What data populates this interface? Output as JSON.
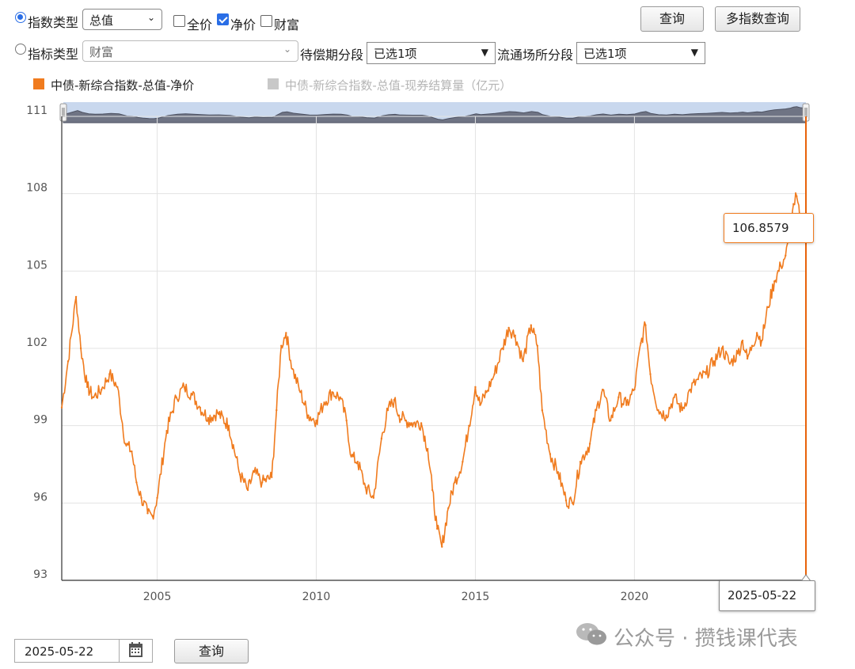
{
  "controls": {
    "index_type": {
      "radio_label": "指数类型",
      "selected": "总值"
    },
    "checkboxes": [
      {
        "label": "全价",
        "checked": false
      },
      {
        "label": "净价",
        "checked": true
      },
      {
        "label": "财富",
        "checked": false
      }
    ],
    "query_button": "查询",
    "multi_query_button": "多指数查询",
    "indicator_type": {
      "radio_label": "指标类型",
      "selected": "财富"
    },
    "maturity": {
      "label": "待偿期分段",
      "selected": "已选1项"
    },
    "venue": {
      "label": "流通场所分段",
      "selected": "已选1项"
    }
  },
  "legend": [
    {
      "label": "中债-新综合指数-总值-净价",
      "color": "#f07b1e",
      "active": true
    },
    {
      "label": "中债-新综合指数-总值-现券结算量（亿元）",
      "color": "#c8c8c8",
      "active": false
    }
  ],
  "tooltip": {
    "value": "106.8579",
    "date": "2025-05-22"
  },
  "bottom": {
    "date_value": "2025-05-22",
    "calendar_icon": "calendar-icon",
    "query_button": "查询"
  },
  "watermark": {
    "text": "公众号 · 攒钱课代表",
    "icon": "wechat-icon"
  },
  "chart_data": {
    "type": "line",
    "title": "",
    "xlabel": "",
    "ylabel": "",
    "xlim": [
      2002.0,
      2025.39
    ],
    "ylim": [
      93,
      111
    ],
    "y_ticks": [
      93,
      96,
      99,
      102,
      105,
      108,
      111
    ],
    "x_ticks": [
      2005,
      2010,
      2015,
      2020
    ],
    "grid": true,
    "series": [
      {
        "name": "中债-新综合指数-总值-净价",
        "color": "#f07b1e",
        "x": [
          2002.0,
          2002.2,
          2002.45,
          2002.6,
          2002.8,
          2003.0,
          2003.25,
          2003.5,
          2003.75,
          2004.0,
          2004.2,
          2004.35,
          2004.5,
          2004.7,
          2004.85,
          2005.0,
          2005.3,
          2005.6,
          2005.85,
          2006.1,
          2006.35,
          2006.6,
          2006.9,
          2007.25,
          2007.6,
          2007.85,
          2008.05,
          2008.3,
          2008.6,
          2008.75,
          2008.9,
          2009.05,
          2009.25,
          2009.5,
          2009.75,
          2010.0,
          2010.25,
          2010.5,
          2010.75,
          2010.95,
          2011.1,
          2011.3,
          2011.55,
          2011.8,
          2012.05,
          2012.25,
          2012.45,
          2012.6,
          2012.8,
          2013.0,
          2013.3,
          2013.5,
          2013.65,
          2013.8,
          2013.95,
          2014.15,
          2014.35,
          2014.6,
          2014.8,
          2015.0,
          2015.15,
          2015.35,
          2015.6,
          2015.85,
          2016.05,
          2016.25,
          2016.5,
          2016.75,
          2016.95,
          2017.1,
          2017.35,
          2017.6,
          2017.85,
          2018.05,
          2018.3,
          2018.6,
          2018.8,
          2019.0,
          2019.25,
          2019.5,
          2019.75,
          2020.0,
          2020.2,
          2020.35,
          2020.5,
          2020.75,
          2021.0,
          2021.25,
          2021.5,
          2021.75,
          2022.0,
          2022.25,
          2022.5,
          2022.75,
          2023.0,
          2023.25,
          2023.4,
          2023.55,
          2023.7,
          2023.85,
          2024.0,
          2024.2,
          2024.4,
          2024.6,
          2024.75,
          2024.9,
          2025.0,
          2025.1,
          2025.2,
          2025.3,
          2025.39
        ],
        "values": [
          99.7,
          101.5,
          104.0,
          102.0,
          100.5,
          100.1,
          100.4,
          101.0,
          100.5,
          98.3,
          98.0,
          96.8,
          96.2,
          95.6,
          95.5,
          96.2,
          98.8,
          100.1,
          100.5,
          100.2,
          99.7,
          99.3,
          99.5,
          99.0,
          97.1,
          96.5,
          97.2,
          96.8,
          97.0,
          99.6,
          102.1,
          102.6,
          101.2,
          100.3,
          99.4,
          99.2,
          99.9,
          100.3,
          100.1,
          99.2,
          97.8,
          97.6,
          96.6,
          96.2,
          98.5,
          99.6,
          100.0,
          99.4,
          99.2,
          99.1,
          99.1,
          98.1,
          96.5,
          95.0,
          94.3,
          95.8,
          96.8,
          97.6,
          99.0,
          100.5,
          99.8,
          100.3,
          101.0,
          102.0,
          102.8,
          102.5,
          101.5,
          102.9,
          102.1,
          99.6,
          97.9,
          97.2,
          96.1,
          96.0,
          97.6,
          98.3,
          99.6,
          100.4,
          99.2,
          100.1,
          99.8,
          100.4,
          102.2,
          102.9,
          101.0,
          99.6,
          99.4,
          100.1,
          99.6,
          100.4,
          100.8,
          101.0,
          101.5,
          102.0,
          101.4,
          101.8,
          102.3,
          101.6,
          102.1,
          102.6,
          102.3,
          103.6,
          104.6,
          105.2,
          105.6,
          106.4,
          107.6,
          107.9,
          107.0,
          106.6,
          106.86
        ]
      }
    ],
    "navigator": {
      "present": true
    }
  }
}
